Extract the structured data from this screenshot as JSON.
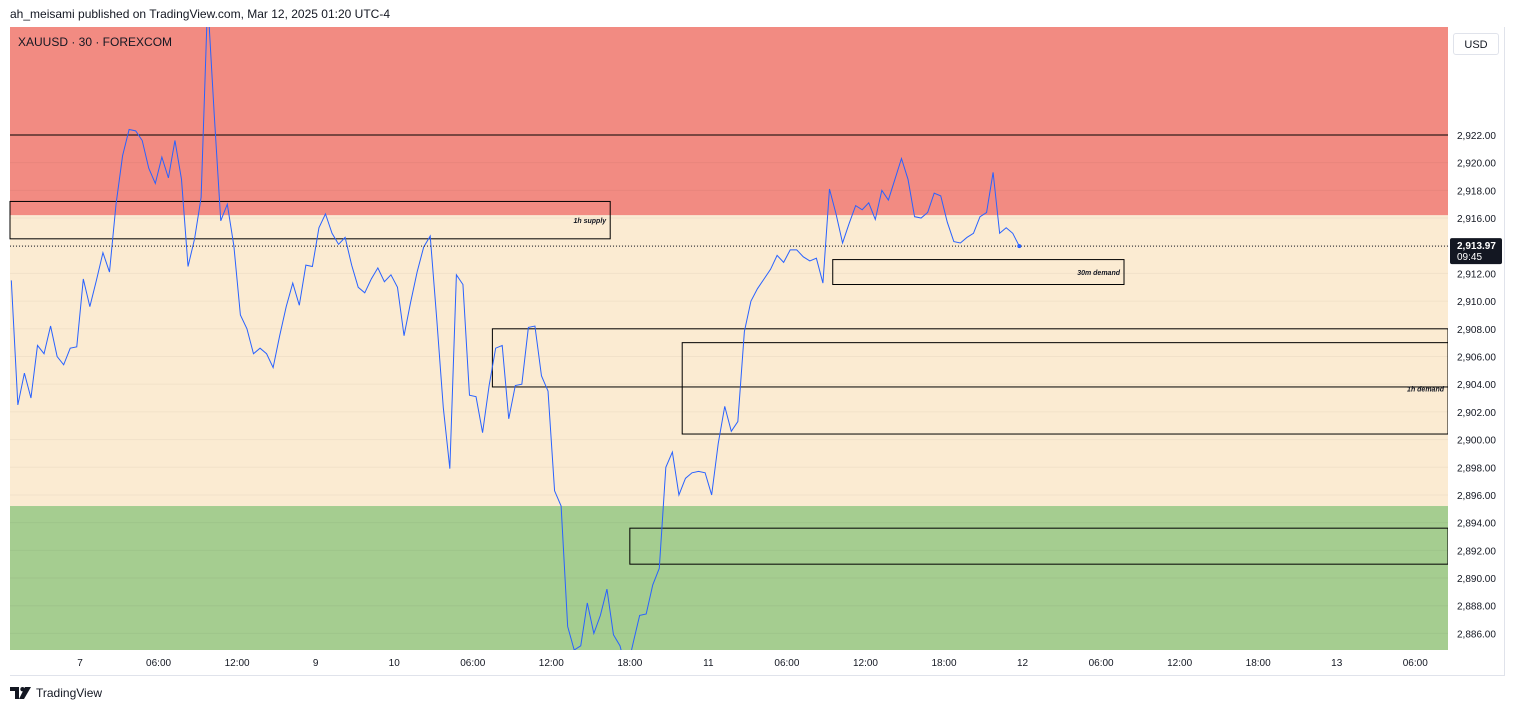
{
  "header": {
    "published_text": "ah_meisami published on TradingView.com, Mar 12, 2025 01:20 UTC-4"
  },
  "footer": {
    "brand": "TradingView"
  },
  "chart_data": {
    "type": "line",
    "symbol": "XAUUSD · 30 · FOREXCOM",
    "currency": "USD",
    "last_price": "2,913.97",
    "countdown": "09:45",
    "colors": {
      "line": "#2962ff",
      "supply_zone": "#f28b82",
      "neutral_zone": "#fbebd2",
      "demand_zone": "#a5cd90",
      "box_stroke": "#000000"
    },
    "ylim": [
      2884.8,
      2929.8
    ],
    "y_ticks": [
      "2,922.00",
      "2,920.00",
      "2,918.00",
      "2,916.00",
      "2,914.00",
      "2,912.00",
      "2,910.00",
      "2,908.00",
      "2,906.00",
      "2,904.00",
      "2,902.00",
      "2,900.00",
      "2,898.00",
      "2,896.00",
      "2,894.00",
      "2,892.00",
      "2,890.00",
      "2,888.00",
      "2,886.00"
    ],
    "y_tick_values": [
      2922,
      2920,
      2918,
      2916,
      2914,
      2912,
      2910,
      2908,
      2906,
      2904,
      2902,
      2900,
      2898,
      2896,
      2894,
      2892,
      2890,
      2888,
      2886
    ],
    "x_ticks": [
      {
        "label": "7",
        "i": 10.5
      },
      {
        "label": "06:00",
        "i": 22.5
      },
      {
        "label": "12:00",
        "i": 34.5
      },
      {
        "label": "9",
        "i": 46.5
      },
      {
        "label": "10",
        "i": 58.5
      },
      {
        "label": "06:00",
        "i": 70.5
      },
      {
        "label": "12:00",
        "i": 82.5
      },
      {
        "label": "18:00",
        "i": 94.5
      },
      {
        "label": "11",
        "i": 106.5
      },
      {
        "label": "06:00",
        "i": 118.5
      },
      {
        "label": "12:00",
        "i": 130.5
      },
      {
        "label": "18:00",
        "i": 142.5
      },
      {
        "label": "12",
        "i": 154.5
      },
      {
        "label": "06:00",
        "i": 166.5
      },
      {
        "label": "12:00",
        "i": 178.5
      },
      {
        "label": "18:00",
        "i": 190.5
      },
      {
        "label": "13",
        "i": 202.5
      },
      {
        "label": "06:00",
        "i": 214.5
      }
    ],
    "x_range": [
      -0.2,
      219.5
    ],
    "zones": [
      {
        "name": "supply",
        "from": 2916.2,
        "to": 2929.8
      },
      {
        "name": "neutral",
        "from": 2895.2,
        "to": 2916.2
      },
      {
        "name": "demand",
        "from": 2884.8,
        "to": 2895.2
      }
    ],
    "h_lines": [
      2922.0
    ],
    "boxes": [
      {
        "label": "1h supply",
        "x0": -0.2,
        "x1": 91.5,
        "y_top": 2917.2,
        "y_bottom": 2914.5
      },
      {
        "label": "30m demand",
        "x0": 125.5,
        "x1": 170.0,
        "y_top": 2913.0,
        "y_bottom": 2911.2
      },
      {
        "label": "",
        "x0": 73.5,
        "x1": 219.5,
        "y_top": 2908.0,
        "y_bottom": 2903.8
      },
      {
        "label": "1h demand",
        "x0": 102.5,
        "x1": 219.5,
        "y_top": 2907.0,
        "y_bottom": 2900.4
      },
      {
        "label": "",
        "x0": 94.5,
        "x1": 219.5,
        "y_top": 2893.6,
        "y_bottom": 2891.0
      }
    ],
    "series": [
      {
        "values": [
          2911.5,
          2902.5,
          2904.8,
          2903.0,
          2906.8,
          2906.2,
          2908.2,
          2906.0,
          2905.4,
          2906.6,
          2906.7,
          2911.6,
          2909.6,
          2911.5,
          2913.5,
          2912.1,
          2917.0,
          2920.5,
          2922.4,
          2922.3,
          2921.6,
          2919.6,
          2918.5,
          2920.4,
          2918.9,
          2921.6,
          2918.8,
          2912.5,
          2914.5,
          2917.5,
          2931.8,
          2923.5,
          2915.8,
          2917.0,
          2914.0,
          2909.0,
          2908.0,
          2906.2,
          2906.6,
          2906.2,
          2905.2,
          2907.5,
          2909.6,
          2911.3,
          2909.7,
          2912.6,
          2912.5,
          2915.3,
          2916.3,
          2914.9,
          2914.1,
          2914.6,
          2912.6,
          2911.0,
          2910.6,
          2911.6,
          2912.4,
          2911.4,
          2911.9,
          2911.0,
          2907.5,
          2909.9,
          2912.1,
          2913.9,
          2914.7,
          2908.7,
          2902.3,
          2897.9,
          2911.9,
          2911.2,
          2903.2,
          2903.1,
          2900.5,
          2903.9,
          2906.6,
          2906.8,
          2901.5,
          2903.9,
          2904.0,
          2908.1,
          2908.2,
          2904.6,
          2903.5,
          2896.3,
          2895.2,
          2886.5,
          2884.8,
          2885.1,
          2888.2,
          2886.0,
          2887.3,
          2889.2,
          2885.9,
          2885.1,
          2883.2,
          2885.3,
          2887.3,
          2887.4,
          2889.5,
          2890.7,
          2898.0,
          2899.1,
          2896.0,
          2897.2,
          2897.6,
          2897.7,
          2897.6,
          2896.0,
          2899.7,
          2902.4,
          2900.6,
          2901.3,
          2907.8,
          2910.0,
          2910.9,
          2911.6,
          2912.3,
          2913.3,
          2912.8,
          2913.7,
          2913.7,
          2913.2,
          2912.9,
          2913.1,
          2911.3,
          2918.1,
          2916.3,
          2914.2,
          2915.6,
          2916.9,
          2916.6,
          2917.1,
          2915.9,
          2918.0,
          2917.3,
          2918.8,
          2920.3,
          2918.8,
          2916.1,
          2916.0,
          2916.4,
          2917.8,
          2917.6,
          2915.7,
          2914.3,
          2914.2,
          2914.6,
          2914.9,
          2916.1,
          2916.4,
          2919.3,
          2914.9,
          2915.3,
          2914.9,
          2913.97
        ]
      }
    ]
  }
}
